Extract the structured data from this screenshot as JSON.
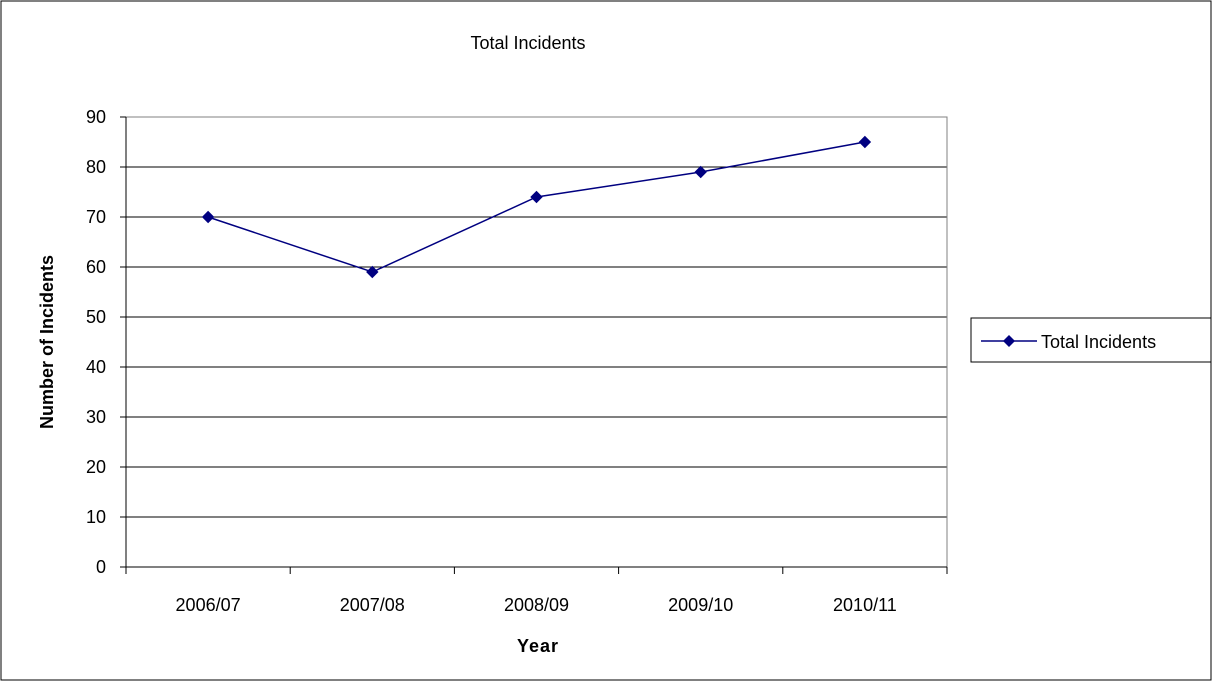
{
  "chart_data": {
    "type": "line",
    "title": "Total Incidents",
    "xlabel": "Year",
    "ylabel": "Number of Incidents",
    "categories": [
      "2006/07",
      "2007/08",
      "2008/09",
      "2009/10",
      "2010/11"
    ],
    "series": [
      {
        "name": "Total Incidents",
        "values": [
          70,
          59,
          74,
          79,
          85
        ],
        "color": "#000080",
        "marker": "diamond"
      }
    ],
    "ylim": [
      0,
      90
    ],
    "yticks": [
      0,
      10,
      20,
      30,
      40,
      50,
      60,
      70,
      80,
      90
    ],
    "grid": "horizontal",
    "legend_position": "right"
  },
  "colors": {
    "gridline": "#000000",
    "frame": "#000000",
    "series": "#000080"
  }
}
